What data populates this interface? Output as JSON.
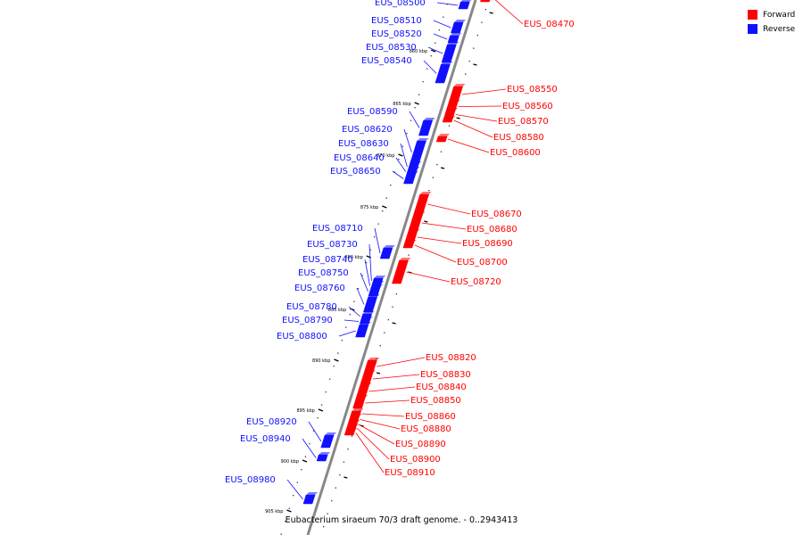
{
  "caption": "Eubacterium siraeum 70/3 draft genome. - 0..2943413",
  "legend": [
    {
      "label": "Forward",
      "color": "#ff0000"
    },
    {
      "label": "Reverse",
      "color": "#1010ff"
    }
  ],
  "colors": {
    "forward": "#ff0000",
    "reverse": "#1010ff",
    "backbone": "#888888"
  },
  "scale_labels": [
    "860 kbp",
    "865 kbp",
    "870 kbp",
    "875 kbp",
    "880 kbp",
    "885 kbp",
    "890 kbp",
    "895 kbp",
    "900 kbp",
    "905 kbp"
  ],
  "genes": [
    {
      "name": "EUS_08470",
      "strand": "forward"
    },
    {
      "name": "EUS_08500",
      "strand": "reverse"
    },
    {
      "name": "EUS_08510",
      "strand": "reverse"
    },
    {
      "name": "EUS_08520",
      "strand": "reverse"
    },
    {
      "name": "EUS_08530",
      "strand": "reverse"
    },
    {
      "name": "EUS_08540",
      "strand": "reverse"
    },
    {
      "name": "EUS_08550",
      "strand": "forward"
    },
    {
      "name": "EUS_08560",
      "strand": "forward"
    },
    {
      "name": "EUS_08570",
      "strand": "forward"
    },
    {
      "name": "EUS_08580",
      "strand": "forward"
    },
    {
      "name": "EUS_08590",
      "strand": "reverse"
    },
    {
      "name": "EUS_08600",
      "strand": "forward"
    },
    {
      "name": "EUS_08620",
      "strand": "reverse"
    },
    {
      "name": "EUS_08630",
      "strand": "reverse"
    },
    {
      "name": "EUS_08640",
      "strand": "reverse"
    },
    {
      "name": "EUS_08650",
      "strand": "reverse"
    },
    {
      "name": "EUS_08670",
      "strand": "forward"
    },
    {
      "name": "EUS_08680",
      "strand": "forward"
    },
    {
      "name": "EUS_08690",
      "strand": "forward"
    },
    {
      "name": "EUS_08700",
      "strand": "forward"
    },
    {
      "name": "EUS_08710",
      "strand": "reverse"
    },
    {
      "name": "EUS_08720",
      "strand": "forward"
    },
    {
      "name": "EUS_08730",
      "strand": "reverse"
    },
    {
      "name": "EUS_08740",
      "strand": "reverse"
    },
    {
      "name": "EUS_08750",
      "strand": "reverse"
    },
    {
      "name": "EUS_08760",
      "strand": "reverse"
    },
    {
      "name": "EUS_08780",
      "strand": "reverse"
    },
    {
      "name": "EUS_08790",
      "strand": "reverse"
    },
    {
      "name": "EUS_08800",
      "strand": "reverse"
    },
    {
      "name": "EUS_08820",
      "strand": "forward"
    },
    {
      "name": "EUS_08830",
      "strand": "forward"
    },
    {
      "name": "EUS_08840",
      "strand": "forward"
    },
    {
      "name": "EUS_08850",
      "strand": "forward"
    },
    {
      "name": "EUS_08860",
      "strand": "forward"
    },
    {
      "name": "EUS_08880",
      "strand": "forward"
    },
    {
      "name": "EUS_08890",
      "strand": "forward"
    },
    {
      "name": "EUS_08900",
      "strand": "forward"
    },
    {
      "name": "EUS_08910",
      "strand": "forward"
    },
    {
      "name": "EUS_08920",
      "strand": "reverse"
    },
    {
      "name": "EUS_08940",
      "strand": "reverse"
    },
    {
      "name": "EUS_08980",
      "strand": "reverse"
    }
  ]
}
